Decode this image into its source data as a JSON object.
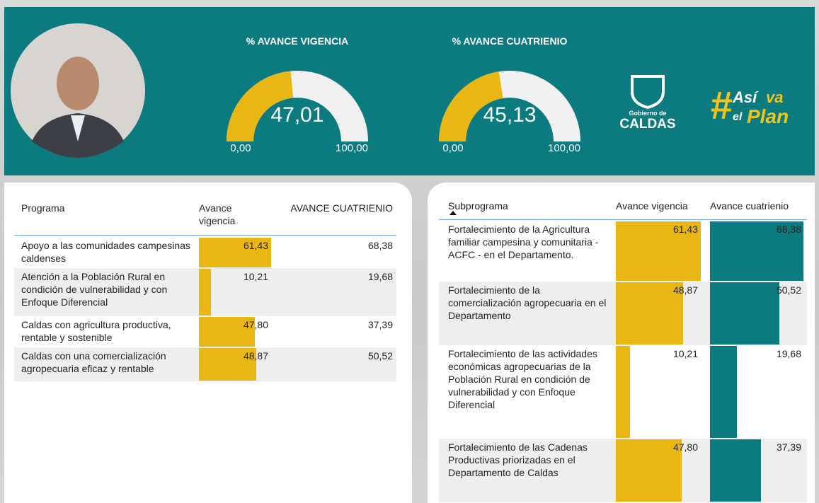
{
  "header": {
    "gauges": [
      {
        "title": "% AVANCE VIGENCIA",
        "value": {
          "value": 47.01,
          "label": "47,01"
        },
        "min": {
          "value": 0,
          "label": "0,00"
        },
        "max": {
          "value": 100,
          "label": "100,00"
        }
      },
      {
        "title": "% AVANCE CUATRIENIO",
        "value": {
          "value": 45.13,
          "label": "45,13"
        },
        "min": {
          "value": 0,
          "label": "0,00"
        },
        "max": {
          "value": 100,
          "label": "100,00"
        }
      }
    ],
    "logo": {
      "line1": "Gobierno de",
      "line2": "CALDAS"
    },
    "slogan": {
      "hash": "#",
      "w1": "Así",
      "w2": "va",
      "w3": "el",
      "w4": "Plan"
    }
  },
  "programas": {
    "columns": [
      "Programa",
      "Avance vigencia",
      "AVANCE CUATRIENIO"
    ],
    "rows": [
      {
        "name": "Apoyo a las comunidades campesinas caldenses",
        "vigencia": {
          "value": 61.43,
          "label": "61,43"
        },
        "cuatrienio": {
          "value": 68.38,
          "label": "68,38"
        }
      },
      {
        "name": "Atención a la Población Rural en condición de vulnerabilidad y con Enfoque Diferencial",
        "vigencia": {
          "value": 10.21,
          "label": "10,21"
        },
        "cuatrienio": {
          "value": 19.68,
          "label": "19,68"
        }
      },
      {
        "name": "Caldas con agricultura productiva, rentable y sostenible",
        "vigencia": {
          "value": 47.8,
          "label": "47,80"
        },
        "cuatrienio": {
          "value": 37.39,
          "label": "37,39"
        }
      },
      {
        "name": "Caldas con una comercialización agropecuaria eficaz y rentable",
        "vigencia": {
          "value": 48.87,
          "label": "48,87"
        },
        "cuatrienio": {
          "value": 50.52,
          "label": "50,52"
        }
      }
    ]
  },
  "subprogramas": {
    "columns": [
      "Subprograma",
      "Avance vigencia",
      "Avance cuatrienio"
    ],
    "rows": [
      {
        "name": "Fortalecimiento de la Agricultura familiar campesina y comunitaria - ACFC - en el Departamento.",
        "vigencia": {
          "value": 61.43,
          "label": "61,43"
        },
        "cuatrienio": {
          "value": 68.38,
          "label": "68,38"
        }
      },
      {
        "name": "Fortalecimiento de la comercialización agropecuaria en el Departamento",
        "vigencia": {
          "value": 48.87,
          "label": "48,87"
        },
        "cuatrienio": {
          "value": 50.52,
          "label": "50,52"
        }
      },
      {
        "name": "Fortalecimiento de las actividades económicas agropecuarias de la Población Rural en condición de vulnerabilidad y con Enfoque Diferencial",
        "vigencia": {
          "value": 10.21,
          "label": "10,21"
        },
        "cuatrienio": {
          "value": 19.68,
          "label": "19,68"
        }
      },
      {
        "name": "Fortalecimiento de las Cadenas Productivas priorizadas en el Departamento de Caldas",
        "vigencia": {
          "value": 47.8,
          "label": "47,80"
        },
        "cuatrienio": {
          "value": 37.39,
          "label": "37,39"
        }
      }
    ]
  }
}
